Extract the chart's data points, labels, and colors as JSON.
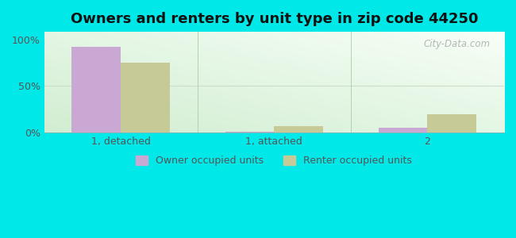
{
  "title": "Owners and renters by unit type in zip code 44250",
  "categories": [
    "1, detached",
    "1, attached",
    "2"
  ],
  "owner_values": [
    92,
    1,
    5
  ],
  "renter_values": [
    75,
    7,
    20
  ],
  "owner_color": "#c9a8d4",
  "renter_color": "#c5ca96",
  "outer_bg": "#00e8e8",
  "yticks": [
    0,
    50,
    100
  ],
  "ytick_labels": [
    "0%",
    "50%",
    "100%"
  ],
  "ylim": [
    0,
    108
  ],
  "bar_width": 0.32,
  "title_fontsize": 13,
  "legend_owner": "Owner occupied units",
  "legend_renter": "Renter occupied units",
  "watermark": "City-Data.com",
  "grid_color": "#ccddcc",
  "separator_color": "#aaccaa",
  "tick_color": "#555555"
}
